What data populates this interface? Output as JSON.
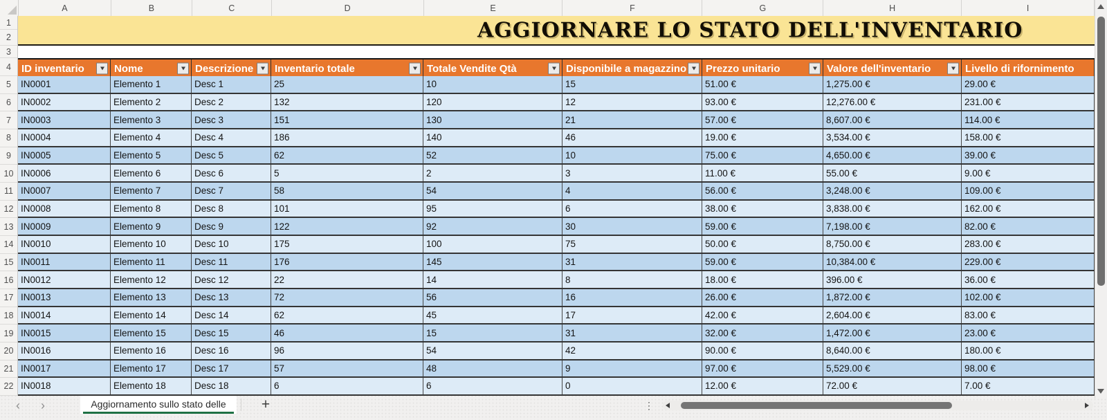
{
  "title_banner": {
    "text": "AGGIORNARE LO STATO DELL'INVENTARIO"
  },
  "grid": {
    "column_letters": [
      "A",
      "B",
      "C",
      "D",
      "E",
      "F",
      "G",
      "H",
      "I"
    ],
    "row_numbers": [
      "1",
      "2",
      "3",
      "4",
      "5",
      "6",
      "7",
      "8",
      "9",
      "10",
      "11",
      "12",
      "13",
      "14",
      "15",
      "16",
      "17",
      "18",
      "19",
      "20",
      "21",
      "22"
    ]
  },
  "table": {
    "headers": [
      {
        "label": "ID inventario",
        "filter": true
      },
      {
        "label": "Nome",
        "filter": true
      },
      {
        "label": "Descrizione",
        "filter": true
      },
      {
        "label": "Inventario totale",
        "filter": true
      },
      {
        "label": "Totale Vendite Qtà",
        "filter": true
      },
      {
        "label": "Disponibile a magazzino",
        "filter": true
      },
      {
        "label": "Prezzo unitario",
        "filter": true
      },
      {
        "label": "Valore dell'inventario",
        "filter": true
      },
      {
        "label": "Livello di rifornimento",
        "filter": false
      }
    ],
    "rows": [
      [
        "IN0001",
        "Elemento 1",
        "Desc 1",
        "25",
        "10",
        "15",
        "51.00 €",
        "1,275.00 €",
        "29.00 €"
      ],
      [
        "IN0002",
        "Elemento 2",
        "Desc 2",
        "132",
        "120",
        "12",
        "93.00 €",
        "12,276.00 €",
        "231.00 €"
      ],
      [
        "IN0003",
        "Elemento 3",
        "Desc 3",
        "151",
        "130",
        "21",
        "57.00 €",
        "8,607.00 €",
        "114.00 €"
      ],
      [
        "IN0004",
        "Elemento 4",
        "Desc 4",
        "186",
        "140",
        "46",
        "19.00 €",
        "3,534.00 €",
        "158.00 €"
      ],
      [
        "IN0005",
        "Elemento 5",
        "Desc 5",
        "62",
        "52",
        "10",
        "75.00 €",
        "4,650.00 €",
        "39.00 €"
      ],
      [
        "IN0006",
        "Elemento 6",
        "Desc 6",
        "5",
        "2",
        "3",
        "11.00 €",
        "55.00 €",
        "9.00 €"
      ],
      [
        "IN0007",
        "Elemento 7",
        "Desc 7",
        "58",
        "54",
        "4",
        "56.00 €",
        "3,248.00 €",
        "109.00 €"
      ],
      [
        "IN0008",
        "Elemento 8",
        "Desc 8",
        "101",
        "95",
        "6",
        "38.00 €",
        "3,838.00 €",
        "162.00 €"
      ],
      [
        "IN0009",
        "Elemento 9",
        "Desc 9",
        "122",
        "92",
        "30",
        "59.00 €",
        "7,198.00 €",
        "82.00 €"
      ],
      [
        "IN0010",
        "Elemento 10",
        "Desc 10",
        "175",
        "100",
        "75",
        "50.00 €",
        "8,750.00 €",
        "283.00 €"
      ],
      [
        "IN0011",
        "Elemento 11",
        "Desc 11",
        "176",
        "145",
        "31",
        "59.00 €",
        "10,384.00 €",
        "229.00 €"
      ],
      [
        "IN0012",
        "Elemento 12",
        "Desc 12",
        "22",
        "14",
        "8",
        "18.00 €",
        "396.00 €",
        "36.00 €"
      ],
      [
        "IN0013",
        "Elemento 13",
        "Desc 13",
        "72",
        "56",
        "16",
        "26.00 €",
        "1,872.00 €",
        "102.00 €"
      ],
      [
        "IN0014",
        "Elemento 14",
        "Desc 14",
        "62",
        "45",
        "17",
        "42.00 €",
        "2,604.00 €",
        "83.00 €"
      ],
      [
        "IN0015",
        "Elemento 15",
        "Desc 15",
        "46",
        "15",
        "31",
        "32.00 €",
        "1,472.00 €",
        "23.00 €"
      ],
      [
        "IN0016",
        "Elemento 16",
        "Desc 16",
        "96",
        "54",
        "42",
        "90.00 €",
        "8,640.00 €",
        "180.00 €"
      ],
      [
        "IN0017",
        "Elemento 17",
        "Desc 17",
        "57",
        "48",
        "9",
        "97.00 €",
        "5,529.00 €",
        "98.00 €"
      ],
      [
        "IN0018",
        "Elemento 18",
        "Desc 18",
        "6",
        "6",
        "0",
        "12.00 €",
        "72.00 €",
        "7.00 €"
      ]
    ]
  },
  "sheet_bar": {
    "tab_label": "Aggiornamento sullo stato delle",
    "add_sheet_glyph": "+",
    "prev_glyph": "‹",
    "next_glyph": "›",
    "menu_dots_glyph": "⋮"
  },
  "colors": {
    "header_fill": "#E8772D",
    "banner_fill": "#FAE495",
    "band_dark": "#BDD7EE",
    "band_light": "#DDEBF7",
    "tab_underline": "#1F7145"
  }
}
